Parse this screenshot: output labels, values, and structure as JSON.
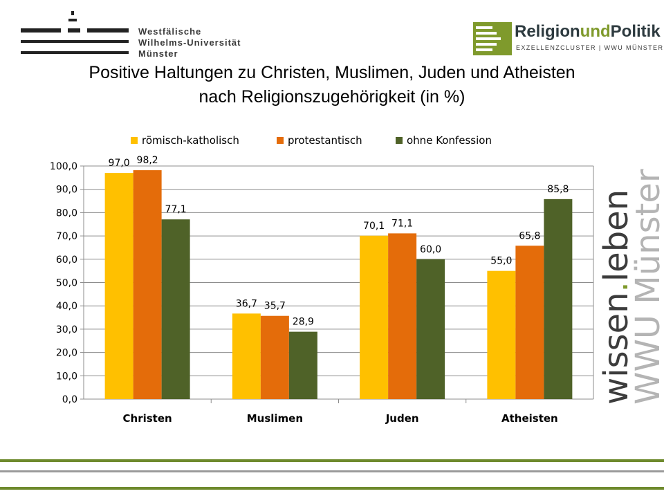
{
  "header": {
    "university_lines": [
      "Westfälische",
      "Wilhelms-Universität",
      "Münster"
    ],
    "rp_logo": {
      "part1": "Religion",
      "part2": "und",
      "part3": "Politik",
      "subtitle": "EXZELLENZCLUSTER | WWU MÜNSTER"
    },
    "title_line1": "Positive Haltungen zu Christen, Muslimen, Juden und Atheisten",
    "title_line2": "nach Religionszugehörigkeit (in %)"
  },
  "side_logo": {
    "word1": "wissen",
    "dot": ".",
    "word2": "leben",
    "line2": "WWU Münster"
  },
  "colors": {
    "green_accent": "#7f9a2c",
    "stripe_green": "#6e8a2d",
    "stripe_gray": "#9a9a9a"
  },
  "chart_data": {
    "type": "bar",
    "categories": [
      "Christen",
      "Muslimen",
      "Juden",
      "Atheisten"
    ],
    "series": [
      {
        "name": "römisch-katholisch",
        "color": "#ffc000",
        "values": [
          97.0,
          36.7,
          70.1,
          55.0
        ],
        "labels": [
          "97,0",
          "36,7",
          "70,1",
          "55,0"
        ]
      },
      {
        "name": "protestantisch",
        "color": "#e46c0a",
        "values": [
          98.2,
          35.7,
          71.1,
          65.8
        ],
        "labels": [
          "98,2",
          "35,7",
          "71,1",
          "65,8"
        ]
      },
      {
        "name": "ohne Konfession",
        "color": "#4f6228",
        "values": [
          77.1,
          28.9,
          60.0,
          85.8
        ],
        "labels": [
          "77,1",
          "28,9",
          "60,0",
          "85,8"
        ]
      }
    ],
    "ylim": [
      0,
      100
    ],
    "yticks": [
      "0,0",
      "10,0",
      "20,0",
      "30,0",
      "40,0",
      "50,0",
      "60,0",
      "70,0",
      "80,0",
      "90,0",
      "100,0"
    ],
    "grid": true,
    "legend_position": "top"
  }
}
